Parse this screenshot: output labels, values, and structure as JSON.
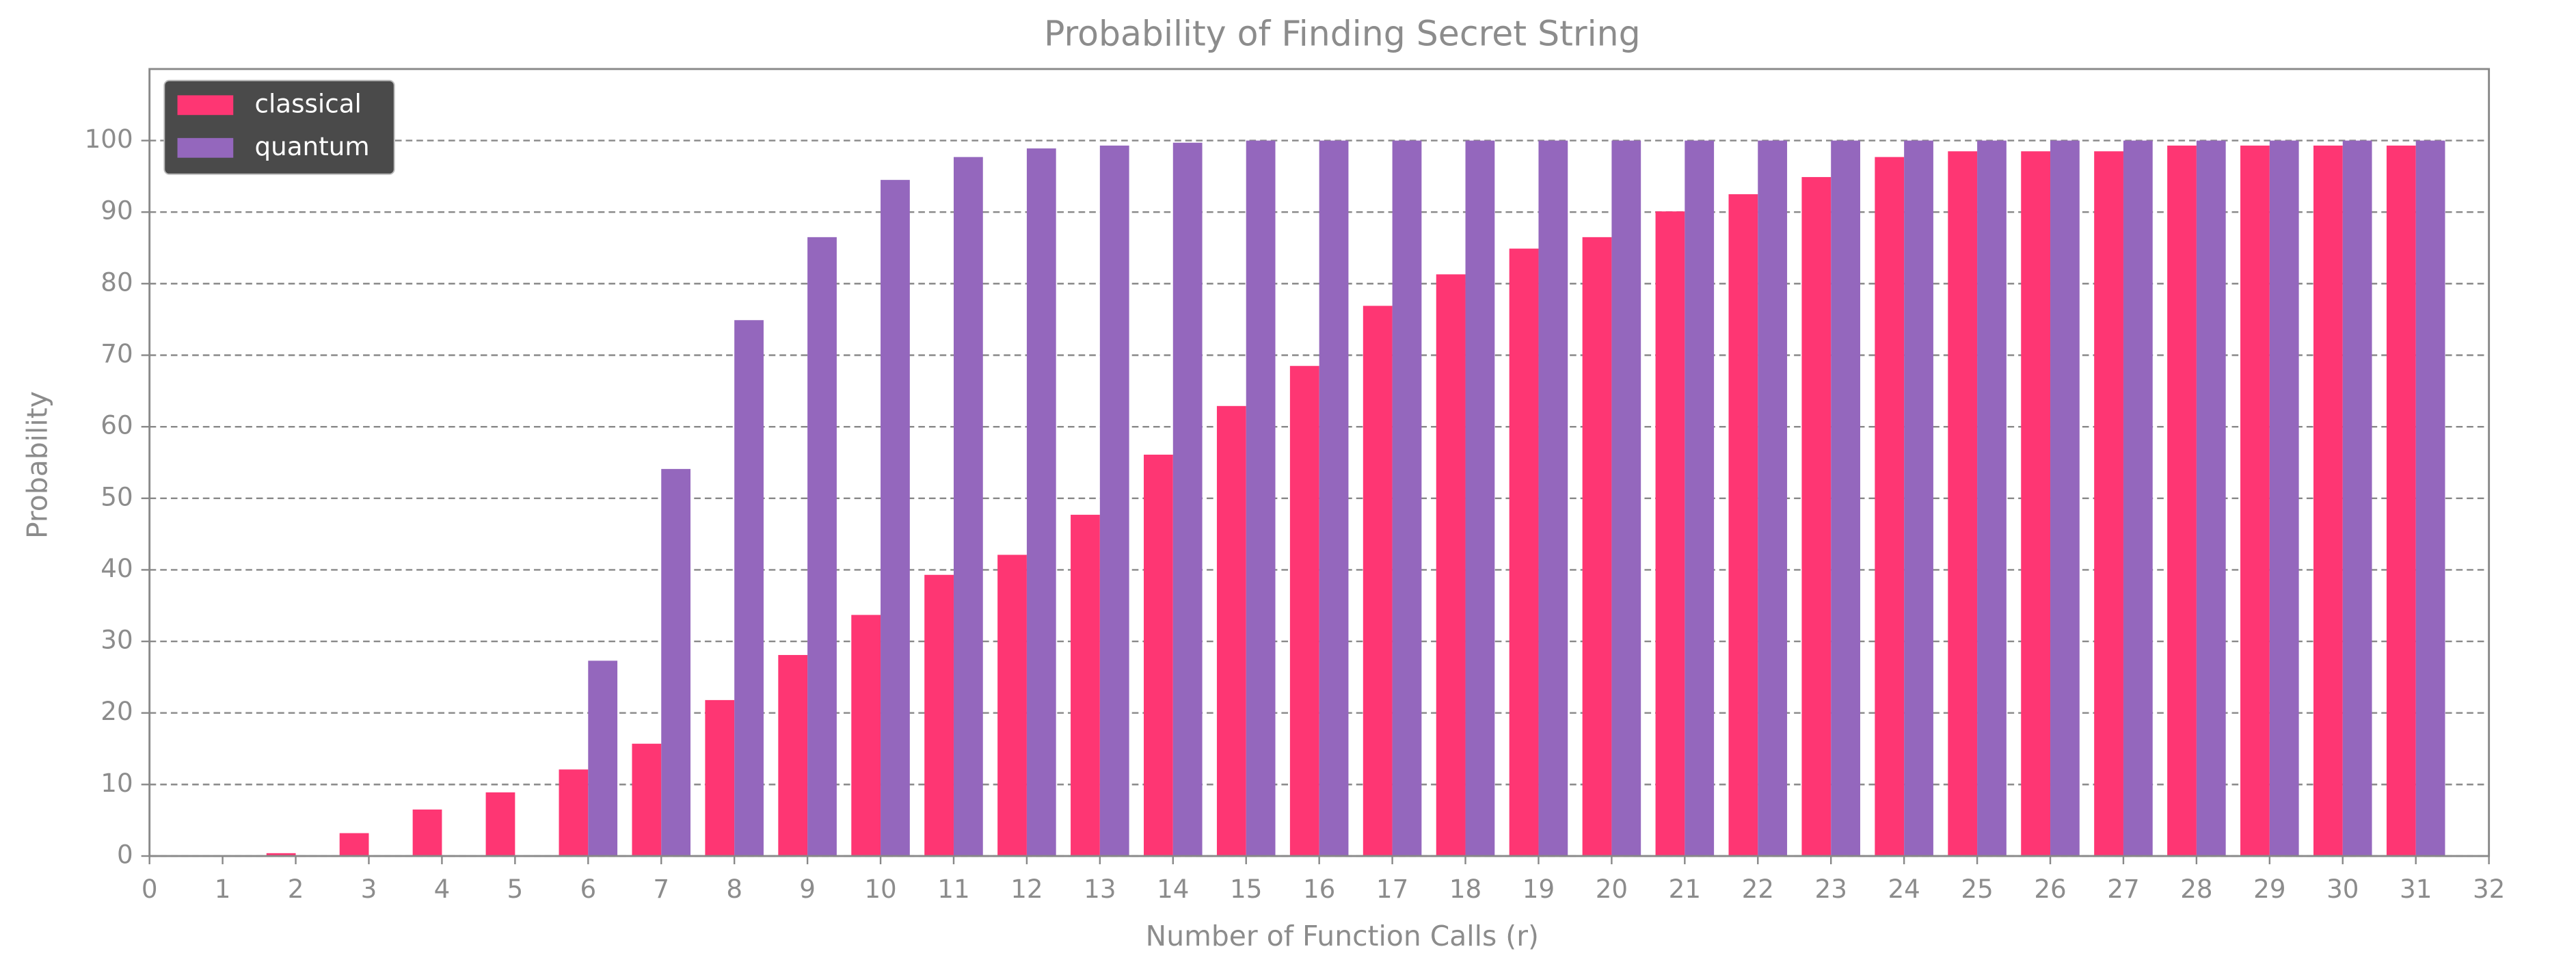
{
  "chart_data": {
    "type": "bar",
    "title": "Probability of Finding Secret String",
    "xlabel": "Number of Function Calls (r)",
    "ylabel": "Probability",
    "x": [
      1,
      2,
      3,
      4,
      5,
      6,
      7,
      8,
      9,
      10,
      11,
      12,
      13,
      14,
      15,
      16,
      17,
      18,
      19,
      20,
      21,
      22,
      23,
      24,
      25,
      26,
      27,
      28,
      29,
      30,
      31
    ],
    "series": [
      {
        "name": "classical",
        "color": "#fe3673",
        "values": [
          0,
          0.4,
          3.2,
          6.5,
          8.9,
          12.1,
          15.7,
          21.8,
          28.1,
          33.7,
          39.3,
          42.1,
          47.7,
          56.1,
          62.9,
          68.5,
          76.9,
          81.3,
          84.9,
          86.5,
          90.1,
          92.5,
          94.9,
          97.7,
          98.5,
          98.5,
          98.5,
          99.3,
          99.3,
          99.3,
          99.3
        ]
      },
      {
        "name": "quantum",
        "color": "#9467bd",
        "values": [
          0,
          0,
          0,
          0,
          0,
          27.3,
          54.1,
          74.9,
          86.5,
          94.5,
          97.7,
          98.9,
          99.3,
          99.7,
          100,
          100,
          100,
          100,
          100,
          100,
          100,
          100,
          100,
          100,
          100,
          100,
          100,
          100,
          100,
          100,
          100
        ]
      }
    ],
    "xlim": [
      0,
      32
    ],
    "xticks": [
      0,
      1,
      2,
      3,
      4,
      5,
      6,
      7,
      8,
      9,
      10,
      11,
      12,
      13,
      14,
      15,
      16,
      17,
      18,
      19,
      20,
      21,
      22,
      23,
      24,
      25,
      26,
      27,
      28,
      29,
      30,
      31,
      32
    ],
    "ylim": [
      0,
      110
    ],
    "yticks": [
      0,
      10,
      20,
      30,
      40,
      50,
      60,
      70,
      80,
      90,
      100
    ],
    "grid": true,
    "legend": "upper-left"
  }
}
